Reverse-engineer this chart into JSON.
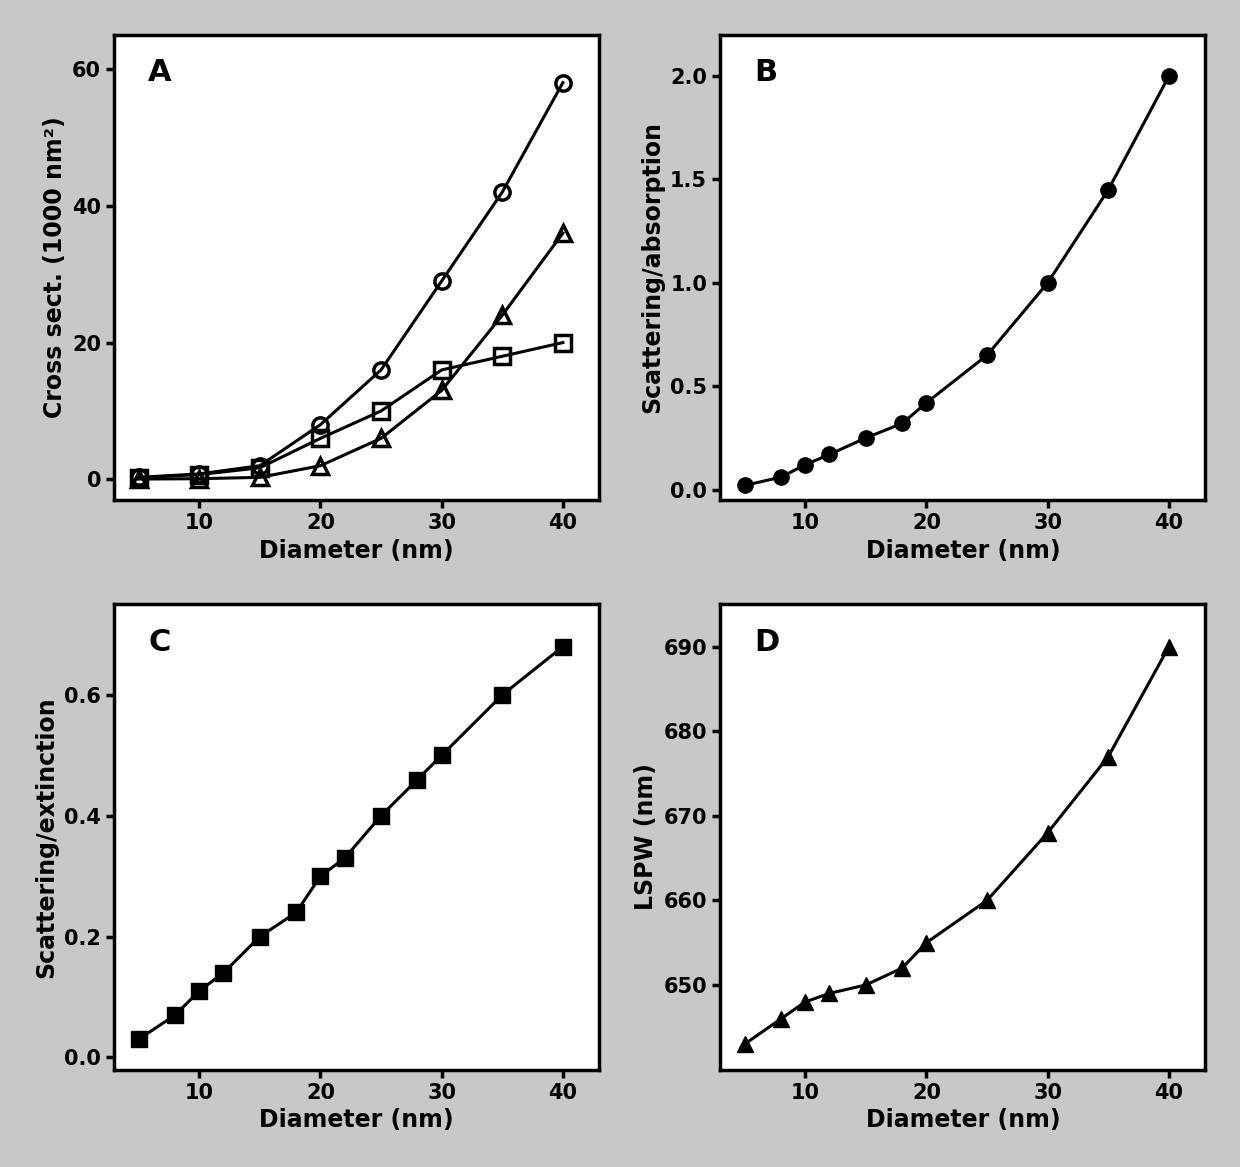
{
  "A": {
    "diameter": [
      5,
      10,
      15,
      20,
      25,
      30,
      35,
      40
    ],
    "extinction": [
      0.3,
      0.8,
      2.0,
      8.0,
      16.0,
      29.0,
      42.0,
      58.0
    ],
    "scattering": [
      0.05,
      0.1,
      0.3,
      2.0,
      6.0,
      13.0,
      24.0,
      36.0
    ],
    "absorption": [
      0.25,
      0.7,
      1.7,
      6.0,
      10.0,
      16.0,
      18.0,
      20.0
    ],
    "ylabel": "Cross sect. (1000 nm²)",
    "xlabel": "Diameter (nm)",
    "label": "A",
    "ylim": [
      -3,
      65
    ],
    "yticks": [
      0,
      20,
      40,
      60
    ]
  },
  "B": {
    "diameter": [
      5,
      8,
      10,
      12,
      15,
      18,
      20,
      25,
      30,
      35,
      40
    ],
    "ratio": [
      0.02,
      0.06,
      0.12,
      0.17,
      0.25,
      0.32,
      0.42,
      0.65,
      1.0,
      1.45,
      2.0
    ],
    "ylabel": "Scattering/absorption",
    "xlabel": "Diameter (nm)",
    "label": "B",
    "ylim": [
      -0.05,
      2.2
    ],
    "yticks": [
      0.0,
      0.5,
      1.0,
      1.5,
      2.0
    ]
  },
  "C": {
    "diameter": [
      5,
      8,
      10,
      12,
      15,
      18,
      20,
      22,
      25,
      28,
      30,
      35,
      40
    ],
    "ratio": [
      0.03,
      0.07,
      0.11,
      0.14,
      0.2,
      0.24,
      0.3,
      0.33,
      0.4,
      0.46,
      0.5,
      0.6,
      0.68
    ],
    "ylabel": "Scattering/extinction",
    "xlabel": "Diameter (nm)",
    "label": "C",
    "ylim": [
      -0.02,
      0.75
    ],
    "yticks": [
      0.0,
      0.2,
      0.4,
      0.6
    ]
  },
  "D": {
    "diameter": [
      5,
      8,
      10,
      12,
      15,
      18,
      20,
      25,
      30,
      35,
      40
    ],
    "lspw": [
      643,
      646,
      648,
      649,
      650,
      652,
      655,
      660,
      668,
      677,
      690
    ],
    "ylabel": "LSPW (nm)",
    "xlabel": "Diameter (nm)",
    "label": "D",
    "ylim": [
      640,
      695
    ],
    "yticks": [
      650,
      660,
      670,
      680,
      690
    ]
  },
  "xticks": [
    10,
    20,
    30,
    40
  ],
  "background_color": "#c8c8c8",
  "plot_bg_color": "#ffffff",
  "line_color": "#000000",
  "marker_size_open": 11,
  "marker_size_filled": 11,
  "linewidth": 2.2,
  "font_size_label": 17,
  "font_size_tick": 15,
  "font_size_panel": 22
}
